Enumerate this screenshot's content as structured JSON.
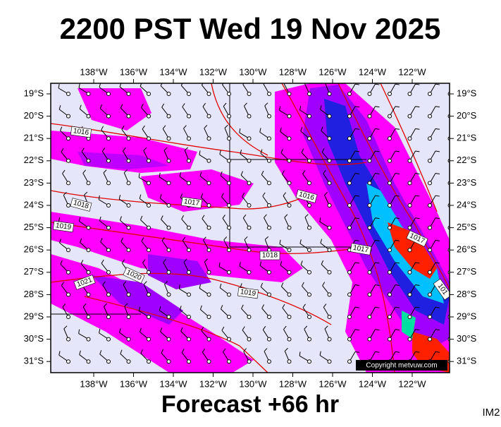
{
  "header": {
    "title": "2200 PST Wed 19 Nov 2025"
  },
  "footer": {
    "forecast": "Forecast +66 hr",
    "code": "IM2"
  },
  "map": {
    "copyright": "Copyright metvuw.com",
    "lon_labels": [
      "138°W",
      "136°W",
      "134°W",
      "132°W",
      "130°W",
      "128°W",
      "126°W",
      "124°W",
      "122°W"
    ],
    "lat_labels": [
      "19°S",
      "20°S",
      "21°S",
      "22°S",
      "23°S",
      "24°S",
      "25°S",
      "26°S",
      "27°S",
      "28°S",
      "29°S",
      "30°S",
      "31°S"
    ],
    "isobar_labels": [
      "1016",
      "1018",
      "1019",
      "1021",
      "1020",
      "1017",
      "1016",
      "1018",
      "1019",
      "1017",
      "1017",
      "101"
    ]
  }
}
